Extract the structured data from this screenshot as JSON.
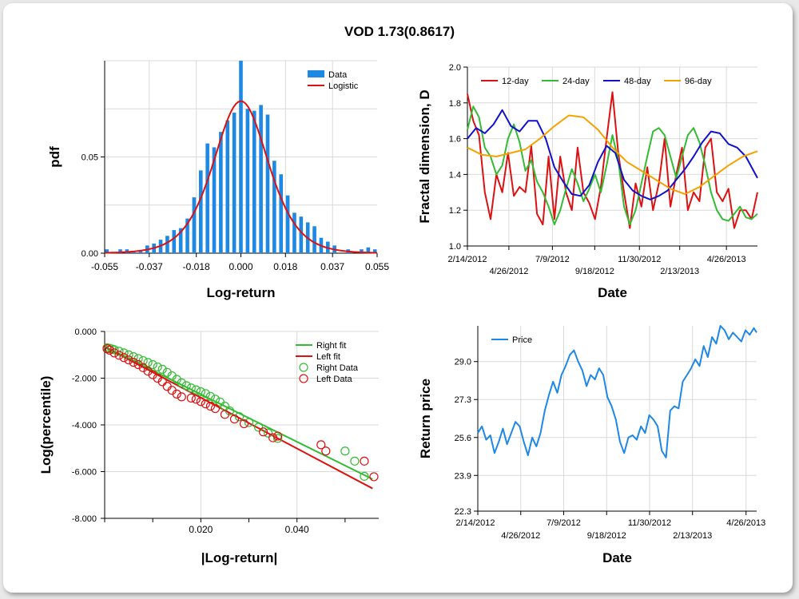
{
  "title": "VOD 1.73(0.8617)",
  "chart_data": [
    {
      "type": "bar",
      "name": "histogram",
      "xlabel": "Log-return",
      "ylabel": "pdf",
      "x_ticks": [
        "-0.055",
        "-0.037",
        "-0.018",
        "0.000",
        "0.018",
        "0.037",
        "0.055"
      ],
      "y_ticks": [
        "0.00",
        "0.05"
      ],
      "xlim": [
        -0.055,
        0.055
      ],
      "ylim": [
        0,
        0.1
      ],
      "legend": [
        "Data",
        "Logistic"
      ],
      "legend_position": "top-right",
      "bin_centers": [
        -0.0541,
        -0.0487,
        -0.046,
        -0.0433,
        -0.0405,
        -0.0378,
        -0.0351,
        -0.0324,
        -0.0297,
        -0.027,
        -0.0243,
        -0.0216,
        -0.0189,
        -0.0162,
        -0.0135,
        -0.0108,
        -0.0081,
        -0.0054,
        -0.0027,
        0.0,
        0.0027,
        0.0054,
        0.0081,
        0.0108,
        0.0135,
        0.0162,
        0.0189,
        0.0216,
        0.0243,
        0.027,
        0.0297,
        0.0324,
        0.0351,
        0.0378,
        0.0433,
        0.0487,
        0.0514,
        0.0541
      ],
      "density": [
        0.002,
        0.002,
        0.002,
        0.001,
        0.001,
        0.004,
        0.005,
        0.007,
        0.009,
        0.012,
        0.013,
        0.018,
        0.029,
        0.043,
        0.057,
        0.055,
        0.063,
        0.069,
        0.073,
        0.1,
        0.075,
        0.074,
        0.077,
        0.072,
        0.048,
        0.041,
        0.03,
        0.021,
        0.019,
        0.016,
        0.014,
        0.008,
        0.006,
        0.004,
        0.002,
        0.002,
        0.003,
        0.002
      ],
      "fit_curve": {
        "name": "Logistic",
        "peak": 0.079,
        "center": 0.0,
        "scale": 0.0074
      },
      "colors": {
        "bars": "#1e88e5",
        "fit": "#dd1111"
      }
    },
    {
      "type": "line",
      "name": "fractal-dimension",
      "xlabel": "Date",
      "ylabel": "Fractal dimension, D",
      "x_ticks_top": [
        "2/14/2012",
        "7/9/2012",
        "11/30/2012",
        "4/26/2013"
      ],
      "x_ticks_bottom": [
        "4/26/2012",
        "9/18/2012",
        "2/13/2013"
      ],
      "y_ticks": [
        "1.0",
        "1.2",
        "1.4",
        "1.6",
        "1.8",
        "2.0"
      ],
      "ylim": [
        1.0,
        2.0
      ],
      "legend_position": "top-left",
      "series": [
        {
          "name": "12-day",
          "color": "#dd1111",
          "x": [
            0,
            0.02,
            0.04,
            0.06,
            0.08,
            0.1,
            0.12,
            0.14,
            0.16,
            0.18,
            0.2,
            0.22,
            0.24,
            0.26,
            0.28,
            0.3,
            0.32,
            0.34,
            0.36,
            0.38,
            0.4,
            0.42,
            0.44,
            0.46,
            0.48,
            0.5,
            0.52,
            0.54,
            0.56,
            0.58,
            0.6,
            0.62,
            0.64,
            0.66,
            0.68,
            0.7,
            0.72,
            0.74,
            0.76,
            0.78,
            0.8,
            0.82,
            0.84,
            0.86,
            0.88,
            0.9,
            0.92,
            0.94,
            0.96,
            0.98,
            1.0
          ],
          "y": [
            1.85,
            1.7,
            1.62,
            1.3,
            1.15,
            1.4,
            1.3,
            1.52,
            1.28,
            1.33,
            1.3,
            1.56,
            1.18,
            1.12,
            1.5,
            1.15,
            1.5,
            1.3,
            1.2,
            1.55,
            1.3,
            1.24,
            1.15,
            1.33,
            1.6,
            1.86,
            1.52,
            1.3,
            1.1,
            1.35,
            1.22,
            1.44,
            1.2,
            1.35,
            1.6,
            1.22,
            1.4,
            1.55,
            1.2,
            1.3,
            1.25,
            1.55,
            1.6,
            1.3,
            1.25,
            1.32,
            1.1,
            1.2,
            1.2,
            1.15,
            1.3
          ]
        },
        {
          "name": "24-day",
          "color": "#33bb33",
          "x": [
            0,
            0.02,
            0.04,
            0.06,
            0.08,
            0.1,
            0.12,
            0.14,
            0.16,
            0.18,
            0.2,
            0.22,
            0.24,
            0.26,
            0.28,
            0.3,
            0.32,
            0.34,
            0.36,
            0.38,
            0.4,
            0.42,
            0.44,
            0.46,
            0.48,
            0.5,
            0.52,
            0.54,
            0.56,
            0.58,
            0.6,
            0.62,
            0.64,
            0.66,
            0.68,
            0.7,
            0.72,
            0.74,
            0.76,
            0.78,
            0.8,
            0.82,
            0.84,
            0.86,
            0.88,
            0.9,
            0.92,
            0.94,
            0.96,
            0.98,
            1.0
          ],
          "y": [
            1.65,
            1.78,
            1.72,
            1.55,
            1.5,
            1.4,
            1.45,
            1.6,
            1.68,
            1.58,
            1.42,
            1.48,
            1.36,
            1.3,
            1.22,
            1.12,
            1.2,
            1.32,
            1.43,
            1.35,
            1.25,
            1.32,
            1.4,
            1.3,
            1.45,
            1.62,
            1.48,
            1.22,
            1.12,
            1.2,
            1.35,
            1.5,
            1.64,
            1.66,
            1.62,
            1.5,
            1.38,
            1.5,
            1.62,
            1.66,
            1.58,
            1.45,
            1.3,
            1.2,
            1.15,
            1.14,
            1.18,
            1.22,
            1.16,
            1.15,
            1.18
          ]
        },
        {
          "name": "48-day",
          "color": "#1111cc",
          "x": [
            0,
            0.03,
            0.06,
            0.09,
            0.12,
            0.15,
            0.18,
            0.21,
            0.24,
            0.27,
            0.3,
            0.33,
            0.36,
            0.39,
            0.42,
            0.45,
            0.48,
            0.51,
            0.54,
            0.57,
            0.6,
            0.63,
            0.66,
            0.69,
            0.72,
            0.75,
            0.78,
            0.81,
            0.84,
            0.87,
            0.9,
            0.93,
            0.96,
            1.0
          ],
          "y": [
            1.6,
            1.66,
            1.63,
            1.68,
            1.76,
            1.67,
            1.64,
            1.7,
            1.7,
            1.6,
            1.44,
            1.36,
            1.29,
            1.28,
            1.34,
            1.47,
            1.56,
            1.52,
            1.37,
            1.31,
            1.28,
            1.26,
            1.28,
            1.31,
            1.37,
            1.43,
            1.5,
            1.58,
            1.64,
            1.63,
            1.57,
            1.55,
            1.5,
            1.38
          ]
        },
        {
          "name": "96-day",
          "color": "#f5a100",
          "x": [
            0,
            0.05,
            0.1,
            0.15,
            0.2,
            0.25,
            0.3,
            0.35,
            0.4,
            0.45,
            0.5,
            0.55,
            0.6,
            0.65,
            0.7,
            0.75,
            0.8,
            0.85,
            0.9,
            0.95,
            1.0
          ],
          "y": [
            1.55,
            1.51,
            1.5,
            1.52,
            1.54,
            1.6,
            1.67,
            1.73,
            1.72,
            1.65,
            1.55,
            1.47,
            1.42,
            1.37,
            1.32,
            1.29,
            1.33,
            1.39,
            1.45,
            1.5,
            1.53
          ]
        }
      ]
    },
    {
      "type": "scatter",
      "name": "tail-fit",
      "xlabel": "|Log-return|",
      "ylabel": "Log(percentile)",
      "x_ticks": [
        "0.020",
        "0.040"
      ],
      "y_ticks": [
        "0.000",
        "-2.000",
        "-4.000",
        "-6.000",
        "-8.000"
      ],
      "xlim": [
        0,
        0.057
      ],
      "ylim": [
        -8,
        0
      ],
      "legend": [
        "Right fit",
        "Left fit",
        "Right Data",
        "Left Data"
      ],
      "legend_position": "top-right",
      "right_fit": {
        "x0": 0.0,
        "y0": -0.66,
        "x1": 0.0557,
        "y1": -6.32,
        "color": "#33bb33"
      },
      "left_fit": {
        "x0": 0.0,
        "y0": -0.66,
        "x1": 0.0557,
        "y1": -6.72,
        "color": "#dd1111"
      },
      "right_data": {
        "color": "#33bb33",
        "x": [
          0.0005,
          0.001,
          0.0015,
          0.002,
          0.003,
          0.004,
          0.005,
          0.006,
          0.007,
          0.008,
          0.009,
          0.01,
          0.011,
          0.012,
          0.013,
          0.014,
          0.015,
          0.016,
          0.017,
          0.018,
          0.019,
          0.02,
          0.021,
          0.022,
          0.023,
          0.024,
          0.025,
          0.026,
          0.028,
          0.03,
          0.032,
          0.034,
          0.036,
          0.05,
          0.052,
          0.054
        ],
        "y": [
          -0.7,
          -0.72,
          -0.75,
          -0.78,
          -0.85,
          -0.92,
          -1.0,
          -1.08,
          -1.16,
          -1.25,
          -1.33,
          -1.42,
          -1.52,
          -1.62,
          -1.75,
          -1.9,
          -2.05,
          -2.2,
          -2.32,
          -2.42,
          -2.5,
          -2.58,
          -2.66,
          -2.78,
          -2.9,
          -3.02,
          -3.2,
          -3.4,
          -3.65,
          -3.9,
          -4.1,
          -4.35,
          -4.58,
          -5.12,
          -5.55,
          -6.2
        ]
      },
      "left_data": {
        "color": "#dd1111",
        "x": [
          0.0005,
          0.001,
          0.002,
          0.003,
          0.004,
          0.005,
          0.006,
          0.007,
          0.008,
          0.009,
          0.01,
          0.011,
          0.012,
          0.013,
          0.014,
          0.015,
          0.016,
          0.018,
          0.019,
          0.02,
          0.021,
          0.022,
          0.023,
          0.025,
          0.027,
          0.029,
          0.033,
          0.035,
          0.036,
          0.045,
          0.046,
          0.054,
          0.056
        ],
        "y": [
          -0.74,
          -0.8,
          -0.92,
          -1.02,
          -1.12,
          -1.22,
          -1.32,
          -1.42,
          -1.55,
          -1.7,
          -1.85,
          -2.0,
          -2.15,
          -2.35,
          -2.52,
          -2.68,
          -2.8,
          -2.85,
          -2.9,
          -3.0,
          -3.1,
          -3.2,
          -3.3,
          -3.55,
          -3.75,
          -3.95,
          -4.3,
          -4.55,
          -4.48,
          -4.85,
          -5.12,
          -5.55,
          -6.22
        ]
      }
    },
    {
      "type": "line",
      "name": "return-price",
      "xlabel": "Date",
      "ylabel": "Return price",
      "x_ticks_top": [
        "2/14/2012",
        "7/9/2012",
        "11/30/2012",
        "4/26/2013"
      ],
      "x_ticks_bottom": [
        "4/26/2012",
        "9/18/2012",
        "2/13/2013"
      ],
      "y_ticks": [
        "22.3",
        "23.9",
        "25.6",
        "27.3",
        "29.0"
      ],
      "ylim": [
        22.3,
        30.6
      ],
      "legend_position": "top-left",
      "series": [
        {
          "name": "Price",
          "color": "#1e88e5",
          "x": [
            0,
            0.015,
            0.03,
            0.045,
            0.06,
            0.075,
            0.09,
            0.105,
            0.12,
            0.135,
            0.15,
            0.165,
            0.18,
            0.195,
            0.21,
            0.225,
            0.24,
            0.255,
            0.27,
            0.285,
            0.3,
            0.315,
            0.33,
            0.345,
            0.36,
            0.375,
            0.39,
            0.405,
            0.42,
            0.435,
            0.45,
            0.465,
            0.48,
            0.495,
            0.51,
            0.525,
            0.54,
            0.555,
            0.57,
            0.585,
            0.6,
            0.615,
            0.63,
            0.645,
            0.66,
            0.675,
            0.69,
            0.705,
            0.72,
            0.735,
            0.75,
            0.765,
            0.78,
            0.795,
            0.81,
            0.825,
            0.84,
            0.855,
            0.87,
            0.885,
            0.9,
            0.915,
            0.93,
            0.945,
            0.96,
            0.975,
            0.99,
            1.0
          ],
          "y": [
            25.8,
            26.1,
            25.5,
            25.7,
            24.9,
            25.4,
            26.0,
            25.3,
            25.8,
            26.3,
            26.1,
            25.4,
            24.8,
            25.6,
            25.2,
            25.8,
            26.8,
            27.5,
            28.1,
            27.6,
            28.4,
            28.8,
            29.3,
            29.5,
            29.0,
            28.6,
            27.9,
            28.4,
            28.2,
            28.7,
            28.4,
            27.4,
            27.0,
            26.4,
            25.4,
            24.9,
            25.6,
            25.7,
            25.5,
            26.1,
            25.8,
            26.6,
            26.4,
            26.1,
            25.0,
            24.7,
            26.8,
            27.0,
            26.9,
            28.1,
            28.4,
            28.7,
            29.1,
            28.8,
            29.7,
            29.2,
            30.1,
            29.8,
            30.6,
            30.4,
            30.0,
            30.3,
            30.1,
            29.9,
            30.4,
            30.2,
            30.5,
            30.3
          ]
        }
      ]
    }
  ]
}
